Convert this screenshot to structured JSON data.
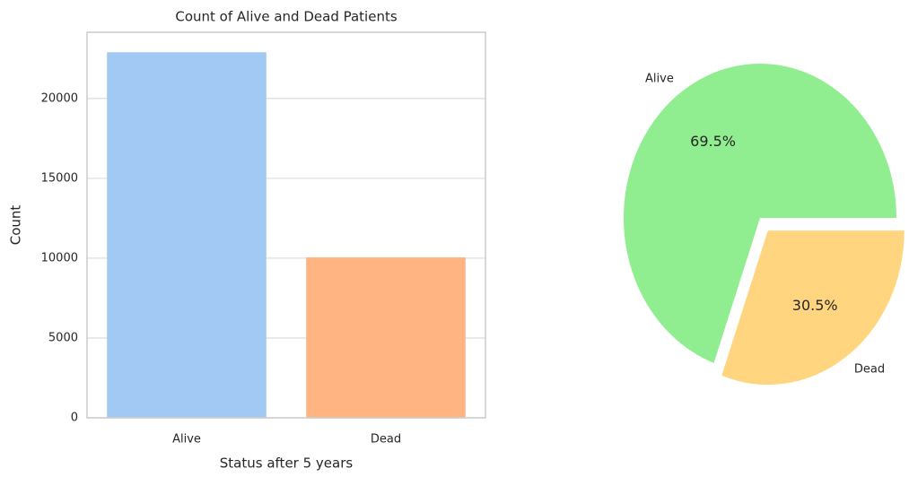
{
  "chart_data": [
    {
      "type": "bar",
      "title": "Count of Alive and Dead Patients",
      "x_label": "Status after 5 years",
      "y_label": "Count",
      "categories": [
        "Alive",
        "Dead"
      ],
      "values": [
        22900,
        10050
      ],
      "colors": [
        "#a1c9f4",
        "#ffb482"
      ],
      "ylim": [
        0,
        24150
      ],
      "yticks": [
        0,
        5000,
        10000,
        15000,
        20000
      ],
      "grid": true
    },
    {
      "type": "pie",
      "categories": [
        "Alive",
        "Dead"
      ],
      "values": [
        69.5,
        30.5
      ],
      "value_labels": [
        "69.5%",
        "30.5%"
      ],
      "colors": [
        "#90ee90",
        "#ffd580"
      ],
      "explode": [
        0,
        0.1
      ]
    }
  ]
}
